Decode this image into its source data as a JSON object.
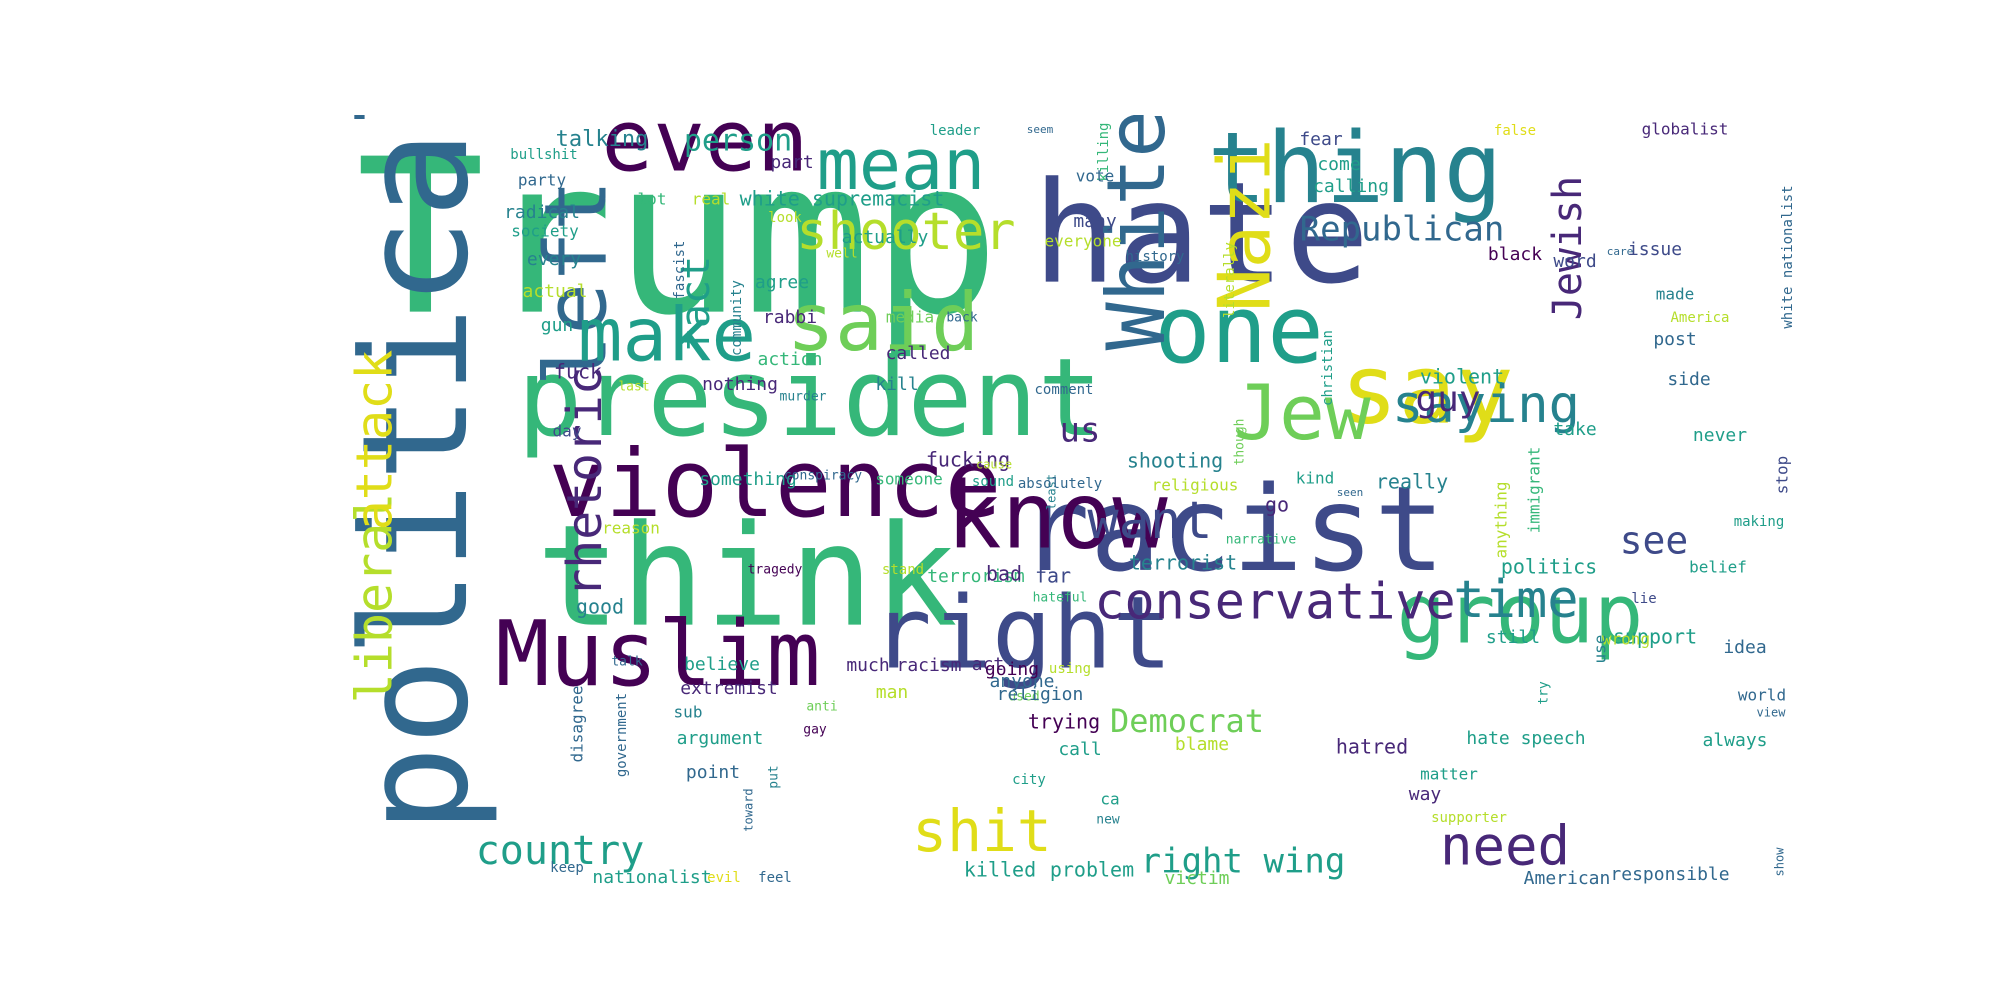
{
  "palette": {
    "purple": "#440154",
    "indigo": "#482878",
    "blue": "#3e4a89",
    "slate": "#31688e",
    "teal": "#26828e",
    "sea": "#1f9e89",
    "green": "#35b779",
    "lime": "#6ece58",
    "chartreuse": "#b5de2b",
    "yellow": "#e0dd18"
  },
  "words": [
    {
      "id": "trump",
      "text": "Trump"
    },
    {
      "id": "political",
      "text": "political"
    },
    {
      "id": "hate",
      "text": "hate"
    },
    {
      "id": "think",
      "text": "think"
    },
    {
      "id": "president",
      "text": "president"
    },
    {
      "id": "racist",
      "text": "racist"
    },
    {
      "id": "violence",
      "text": "violence"
    },
    {
      "id": "know",
      "text": "know"
    },
    {
      "id": "thing",
      "text": "thing"
    },
    {
      "id": "one",
      "text": "one"
    },
    {
      "id": "muslim",
      "text": "Muslim"
    },
    {
      "id": "right",
      "text": "right"
    },
    {
      "id": "say",
      "text": "say"
    },
    {
      "id": "nazi",
      "text": "Nazi"
    },
    {
      "id": "white",
      "text": "White"
    },
    {
      "id": "even",
      "text": "even"
    },
    {
      "id": "left",
      "text": "left"
    },
    {
      "id": "make",
      "text": "make"
    },
    {
      "id": "said",
      "text": "said"
    },
    {
      "id": "mean",
      "text": "mean"
    },
    {
      "id": "jew",
      "text": "Jew"
    },
    {
      "id": "group",
      "text": "group"
    },
    {
      "id": "liberal",
      "text": "liberal"
    },
    {
      "id": "attack",
      "text": "attack"
    },
    {
      "id": "rhetoric",
      "text": "rhetoric"
    },
    {
      "id": "shooter",
      "text": "shooter"
    },
    {
      "id": "conservative",
      "text": "conservative"
    },
    {
      "id": "saying",
      "text": "saying"
    },
    {
      "id": "jewish",
      "text": "Jewish"
    },
    {
      "id": "shit",
      "text": "shit"
    },
    {
      "id": "time",
      "text": "time"
    },
    {
      "id": "need",
      "text": "need"
    },
    {
      "id": "want",
      "text": "want"
    },
    {
      "id": "country",
      "text": "country"
    },
    {
      "id": "fact",
      "text": "fact"
    },
    {
      "id": "republican",
      "text": "Republican"
    },
    {
      "id": "right-wing",
      "text": "right wing"
    },
    {
      "id": "democrat",
      "text": "Democrat"
    },
    {
      "id": "guy",
      "text": "guy"
    },
    {
      "id": "see",
      "text": "see"
    },
    {
      "id": "us",
      "text": "us"
    },
    {
      "id": "person",
      "text": "person"
    },
    {
      "id": "talking",
      "text": "talking"
    },
    {
      "id": "white-supremacist",
      "text": "white supremacist"
    },
    {
      "id": "part",
      "text": "part"
    },
    {
      "id": "party",
      "text": "party"
    },
    {
      "id": "radical",
      "text": "radical"
    },
    {
      "id": "society",
      "text": "society"
    },
    {
      "id": "bullshit",
      "text": "bullshit"
    },
    {
      "id": "lot",
      "text": "lot"
    },
    {
      "id": "real",
      "text": "real"
    },
    {
      "id": "every",
      "text": "every"
    },
    {
      "id": "actual",
      "text": "actual"
    },
    {
      "id": "gun",
      "text": "gun"
    },
    {
      "id": "fuck",
      "text": "fuck"
    },
    {
      "id": "last",
      "text": "last"
    },
    {
      "id": "day",
      "text": "day"
    },
    {
      "id": "reason",
      "text": "reason"
    },
    {
      "id": "good",
      "text": "good"
    },
    {
      "id": "talk",
      "text": "talk"
    },
    {
      "id": "disagree",
      "text": "disagree"
    },
    {
      "id": "government",
      "text": "government"
    },
    {
      "id": "keep",
      "text": "keep"
    },
    {
      "id": "nationalist",
      "text": "nationalist"
    },
    {
      "id": "evil",
      "text": "evil"
    },
    {
      "id": "feel",
      "text": "feel"
    },
    {
      "id": "fascist",
      "text": "fascist"
    },
    {
      "id": "agree",
      "text": "agree"
    },
    {
      "id": "community",
      "text": "community"
    },
    {
      "id": "rabbi",
      "text": "rabbi"
    },
    {
      "id": "action",
      "text": "action"
    },
    {
      "id": "murder",
      "text": "murder"
    },
    {
      "id": "nothing",
      "text": "nothing"
    },
    {
      "id": "something",
      "text": "something"
    },
    {
      "id": "conspiracy",
      "text": "conspiracy"
    },
    {
      "id": "someone",
      "text": "someone"
    },
    {
      "id": "believe",
      "text": "believe"
    },
    {
      "id": "extremist",
      "text": "extremist"
    },
    {
      "id": "sub",
      "text": "sub"
    },
    {
      "id": "argument",
      "text": "argument"
    },
    {
      "id": "point",
      "text": "point"
    },
    {
      "id": "anti",
      "text": "anti"
    },
    {
      "id": "gay",
      "text": "gay"
    },
    {
      "id": "put",
      "text": "put"
    },
    {
      "id": "toward",
      "text": "toward"
    },
    {
      "id": "man",
      "text": "man"
    },
    {
      "id": "much",
      "text": "much"
    },
    {
      "id": "racism",
      "text": "racism"
    },
    {
      "id": "act",
      "text": "act"
    },
    {
      "id": "anyone",
      "text": "anyone"
    },
    {
      "id": "used",
      "text": "used"
    },
    {
      "id": "using",
      "text": "using"
    },
    {
      "id": "terrorism",
      "text": "terrorism"
    },
    {
      "id": "tragedy",
      "text": "tragedy"
    },
    {
      "id": "stand",
      "text": "stand"
    },
    {
      "id": "bad",
      "text": "bad"
    },
    {
      "id": "far",
      "text": "far"
    },
    {
      "id": "hateful",
      "text": "hateful"
    },
    {
      "id": "actually",
      "text": "actually"
    },
    {
      "id": "look",
      "text": "look"
    },
    {
      "id": "well",
      "text": "well"
    },
    {
      "id": "media",
      "text": "media"
    },
    {
      "id": "back",
      "text": "back"
    },
    {
      "id": "called",
      "text": "called"
    },
    {
      "id": "kill",
      "text": "kill"
    },
    {
      "id": "comment",
      "text": "comment"
    },
    {
      "id": "fucking",
      "text": "fucking"
    },
    {
      "id": "shooting",
      "text": "shooting"
    },
    {
      "id": "cause",
      "text": "cause"
    },
    {
      "id": "sound",
      "text": "sound"
    },
    {
      "id": "least",
      "text": "least"
    },
    {
      "id": "absolutely",
      "text": "absolutely"
    },
    {
      "id": "religious",
      "text": "religious"
    },
    {
      "id": "terrorist",
      "text": "terrorist"
    },
    {
      "id": "going",
      "text": "going"
    },
    {
      "id": "religion",
      "text": "religion"
    },
    {
      "id": "trying",
      "text": "trying"
    },
    {
      "id": "call",
      "text": "call"
    },
    {
      "id": "city",
      "text": "city"
    },
    {
      "id": "ca",
      "text": "ca"
    },
    {
      "id": "new",
      "text": "new"
    },
    {
      "id": "killed",
      "text": "killed"
    },
    {
      "id": "problem",
      "text": "problem"
    },
    {
      "id": "victim",
      "text": "victim"
    },
    {
      "id": "blame",
      "text": "blame"
    },
    {
      "id": "hatred",
      "text": "hatred"
    },
    {
      "id": "way",
      "text": "way"
    },
    {
      "id": "matter",
      "text": "matter"
    },
    {
      "id": "supporter",
      "text": "supporter"
    },
    {
      "id": "leader",
      "text": "leader"
    },
    {
      "id": "seem",
      "text": "seem"
    },
    {
      "id": "killing",
      "text": "killing"
    },
    {
      "id": "vote",
      "text": "vote"
    },
    {
      "id": "many",
      "text": "many"
    },
    {
      "id": "everyone",
      "text": "everyone"
    },
    {
      "id": "history",
      "text": "history"
    },
    {
      "id": "literally",
      "text": "literally"
    },
    {
      "id": "christian",
      "text": "christian"
    },
    {
      "id": "though",
      "text": "though"
    },
    {
      "id": "narrative",
      "text": "narrative"
    },
    {
      "id": "go",
      "text": "go"
    },
    {
      "id": "kind",
      "text": "kind"
    },
    {
      "id": "seen",
      "text": "seen"
    },
    {
      "id": "really",
      "text": "really"
    },
    {
      "id": "fear",
      "text": "fear"
    },
    {
      "id": "come",
      "text": "come"
    },
    {
      "id": "calling",
      "text": "calling"
    },
    {
      "id": "care",
      "text": "care"
    },
    {
      "id": "black",
      "text": "black"
    },
    {
      "id": "word",
      "text": "word"
    },
    {
      "id": "violent",
      "text": "violent"
    },
    {
      "id": "immigrant",
      "text": "immigrant"
    },
    {
      "id": "anything",
      "text": "anything"
    },
    {
      "id": "politics",
      "text": "politics"
    },
    {
      "id": "still",
      "text": "still"
    },
    {
      "id": "support",
      "text": "support"
    },
    {
      "id": "hate-speech",
      "text": "hate speech"
    },
    {
      "id": "american",
      "text": "American"
    },
    {
      "id": "responsible",
      "text": "responsible"
    },
    {
      "id": "false",
      "text": "false"
    },
    {
      "id": "globalist",
      "text": "globalist"
    },
    {
      "id": "white-nationalist",
      "text": "white nationalist"
    },
    {
      "id": "issue",
      "text": "issue"
    },
    {
      "id": "made",
      "text": "made"
    },
    {
      "id": "america",
      "text": "America"
    },
    {
      "id": "post",
      "text": "post"
    },
    {
      "id": "side",
      "text": "side"
    },
    {
      "id": "take",
      "text": "take"
    },
    {
      "id": "never",
      "text": "never"
    },
    {
      "id": "stop",
      "text": "stop"
    },
    {
      "id": "making",
      "text": "making"
    },
    {
      "id": "belief",
      "text": "belief"
    },
    {
      "id": "lie",
      "text": "lie"
    },
    {
      "id": "wrong",
      "text": "wrong"
    },
    {
      "id": "idea",
      "text": "idea"
    },
    {
      "id": "try",
      "text": "try"
    },
    {
      "id": "use",
      "text": "use"
    },
    {
      "id": "world",
      "text": "world"
    },
    {
      "id": "view",
      "text": "view"
    },
    {
      "id": "always",
      "text": "always"
    },
    {
      "id": "show",
      "text": "show"
    }
  ]
}
